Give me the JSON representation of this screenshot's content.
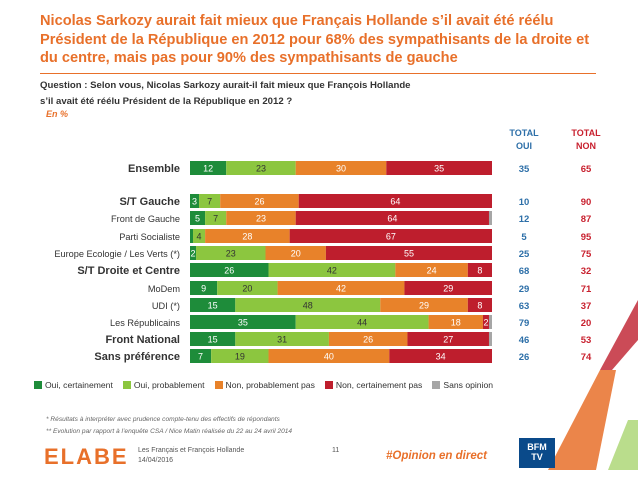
{
  "header": {
    "title": "Nicolas Sarkozy aurait fait mieux que Français Hollande s’il avait été réélu Président de la République en 2012 pour 68% des sympathisants de la droite et du centre, mais pas pour 90% des sympathisants de gauche",
    "question_line1": "Question : Selon vous, Nicolas Sarkozy aurait-il fait mieux que François Hollande",
    "question_line2": "s’il avait été réélu Président de la République en 2012 ?",
    "unit": "En %"
  },
  "columns": {
    "oui_line1": "TOTAL",
    "oui_line2": "OUI",
    "non_line1": "TOTAL",
    "non_line2": "NON"
  },
  "colors": {
    "oui_certainement": "#1e8c3a",
    "oui_probablement": "#8cc63f",
    "non_probablement": "#e8822a",
    "non_certainement": "#be1e2d",
    "sans_opinion": "#a6a6a6",
    "total_oui": "#2d6fa8",
    "total_non": "#c8202e",
    "accent": "#e8702a"
  },
  "chart_data": {
    "type": "bar",
    "orientation": "horizontal",
    "stacked": true,
    "xlim": [
      0,
      100
    ],
    "categories": [
      "Ensemble",
      "S/T Gauche",
      "Front de Gauche",
      "Parti Socialiste",
      "Europe Ecologie / Les Verts (*)",
      "S/T Droite et Centre",
      "MoDem",
      "UDI (*)",
      "Les Républicains",
      "Front National",
      "Sans préférence"
    ],
    "bold_categories": [
      "Ensemble",
      "S/T Gauche",
      "S/T Droite et Centre",
      "Front National",
      "Sans préférence"
    ],
    "series": [
      {
        "name": "Oui, certainement",
        "values": [
          12,
          3,
          5,
          1,
          2,
          26,
          9,
          15,
          35,
          15,
          7
        ]
      },
      {
        "name": "Oui, probablement",
        "values": [
          23,
          7,
          7,
          4,
          23,
          42,
          20,
          48,
          44,
          31,
          19
        ]
      },
      {
        "name": "Non, probablement pas",
        "values": [
          30,
          26,
          23,
          28,
          20,
          24,
          42,
          29,
          18,
          26,
          40
        ]
      },
      {
        "name": "Non, certainement pas",
        "values": [
          35,
          64,
          64,
          67,
          55,
          8,
          29,
          8,
          2,
          27,
          34
        ]
      },
      {
        "name": "Sans opinion",
        "values": [
          0,
          0,
          1,
          0,
          0,
          0,
          0,
          0,
          1,
          1,
          0
        ]
      }
    ],
    "total_oui": [
      35,
      10,
      12,
      5,
      25,
      68,
      29,
      63,
      79,
      46,
      26
    ],
    "total_non": [
      65,
      90,
      87,
      95,
      75,
      32,
      71,
      37,
      20,
      53,
      74
    ]
  },
  "footnotes": {
    "note1": "* Résultats à interpréter avec prudence compte-tenu des effectifs de répondants",
    "note2": "** Evolution par rapport à l’enquête CSA / Nice Matin réalisée du 22 au 24 avril 2014"
  },
  "footer": {
    "brand": "ELABE",
    "study": "Les Français et François Hollande",
    "date": "14/04/2016",
    "page": "11",
    "hashtag": "#Opinion en direct",
    "tv_logo_line1": "BFM",
    "tv_logo_line2": "TV"
  }
}
